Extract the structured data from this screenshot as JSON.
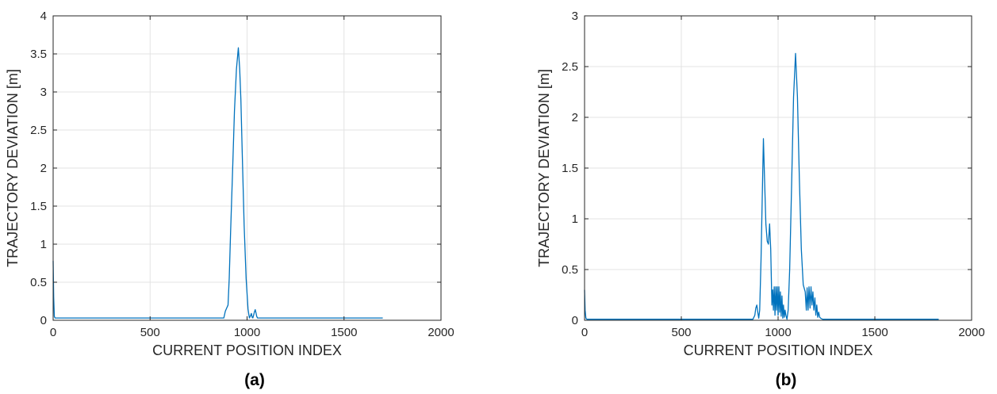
{
  "chart_data": [
    {
      "type": "line",
      "panel_label": "(a)",
      "xlabel": "CURRENT POSITION INDEX",
      "ylabel": "TRAJECTORY DEVIATION [m]",
      "xlim": [
        0,
        2000
      ],
      "ylim": [
        0,
        4
      ],
      "xticks": [
        0,
        500,
        1000,
        1500,
        2000
      ],
      "yticks": [
        0,
        0.5,
        1,
        1.5,
        2,
        2.5,
        3,
        3.5,
        4
      ],
      "xtick_labels": [
        "0",
        "500",
        "1000",
        "1500",
        "2000"
      ],
      "ytick_labels": [
        "0",
        "0.5",
        "1",
        "1.5",
        "2",
        "2.5",
        "3",
        "3.5",
        "4"
      ],
      "grid": true,
      "line_color": "#0072BD",
      "series": [
        {
          "x": [
            0,
            3,
            6,
            10,
            50,
            300,
            600,
            880,
            888,
            895,
            902,
            908,
            915,
            925,
            935,
            945,
            955,
            962,
            968,
            975,
            985,
            995,
            1005,
            1012,
            1018,
            1022,
            1026,
            1030,
            1034,
            1038,
            1042,
            1046,
            1050,
            1054,
            1060,
            1100,
            1400,
            1700
          ],
          "y": [
            0.78,
            0.3,
            0.05,
            0.03,
            0.03,
            0.03,
            0.03,
            0.03,
            0.12,
            0.16,
            0.2,
            0.55,
            1.15,
            1.95,
            2.75,
            3.3,
            3.58,
            3.3,
            2.9,
            2.2,
            1.25,
            0.55,
            0.15,
            0.03,
            0.06,
            0.09,
            0.04,
            0.03,
            0.07,
            0.11,
            0.14,
            0.1,
            0.05,
            0.03,
            0.03,
            0.03,
            0.03,
            0.03
          ]
        }
      ]
    },
    {
      "type": "line",
      "panel_label": "(b)",
      "xlabel": "CURRENT POSITION INDEX",
      "ylabel": "TRAJECTORY DEVIATION [m]",
      "xlim": [
        0,
        2000
      ],
      "ylim": [
        0,
        3
      ],
      "xticks": [
        0,
        500,
        1000,
        1500,
        2000
      ],
      "yticks": [
        0,
        0.5,
        1,
        1.5,
        2,
        2.5,
        3
      ],
      "xtick_labels": [
        "0",
        "500",
        "1000",
        "1500",
        "2000"
      ],
      "ytick_labels": [
        "0",
        "0.5",
        "1",
        "1.5",
        "2",
        "2.5",
        "3"
      ],
      "grid": true,
      "line_color": "#0072BD",
      "series": [
        {
          "x": [
            0,
            3,
            7,
            12,
            300,
            600,
            870,
            880,
            885,
            890,
            895,
            900,
            905,
            912,
            918,
            924,
            930,
            937,
            944,
            950,
            956,
            962,
            968,
            972,
            976,
            980,
            984,
            988,
            992,
            996,
            1000,
            1004,
            1008,
            1012,
            1016,
            1020,
            1024,
            1028,
            1032,
            1036,
            1040,
            1046,
            1052,
            1060,
            1070,
            1080,
            1090,
            1100,
            1110,
            1120,
            1130,
            1140,
            1146,
            1150,
            1155,
            1160,
            1165,
            1170,
            1175,
            1180,
            1185,
            1190,
            1195,
            1200,
            1205,
            1210,
            1215,
            1220,
            1230,
            1250,
            1300,
            1500,
            1830
          ],
          "y": [
            0.3,
            0.1,
            0.02,
            0.01,
            0.01,
            0.01,
            0.01,
            0.05,
            0.12,
            0.15,
            0.08,
            0.02,
            0.1,
            0.6,
            1.2,
            1.79,
            1.4,
            0.95,
            0.78,
            0.75,
            0.95,
            0.7,
            0.15,
            0.3,
            0.1,
            0.33,
            0.05,
            0.33,
            0.1,
            0.33,
            0.05,
            0.33,
            0.08,
            0.28,
            0.04,
            0.24,
            0.02,
            0.15,
            0.03,
            0.1,
            0.05,
            0.01,
            0.1,
            0.5,
            1.35,
            2.2,
            2.63,
            2.2,
            1.4,
            0.7,
            0.35,
            0.28,
            0.1,
            0.32,
            0.1,
            0.33,
            0.12,
            0.33,
            0.15,
            0.28,
            0.1,
            0.22,
            0.05,
            0.15,
            0.03,
            0.08,
            0.03,
            0.02,
            0.01,
            0.01,
            0.01,
            0.01,
            0.01
          ]
        }
      ]
    }
  ]
}
